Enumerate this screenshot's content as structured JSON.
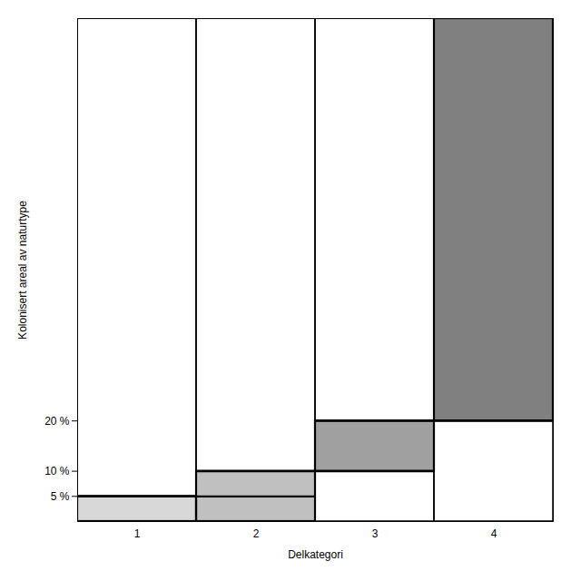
{
  "chart_data": {
    "type": "bar",
    "categories": [
      "1",
      "2",
      "3",
      "4"
    ],
    "y_bottom": [
      0,
      0,
      10,
      20
    ],
    "y_top": [
      5,
      10,
      20,
      100
    ],
    "colors": [
      "#d8d8d8",
      "#c0c0c0",
      "#a0a0a0",
      "#808080"
    ],
    "threshold_lines": [
      {
        "value": 5,
        "categories": [
          "1",
          "2"
        ]
      },
      {
        "value": 10,
        "categories": [
          "2",
          "3"
        ]
      },
      {
        "value": 20,
        "categories": [
          "3",
          "4"
        ]
      }
    ],
    "xlabel": "Delkategori",
    "ylabel": "Kolonisert areal av naturtype",
    "ylim": [
      0,
      100
    ],
    "yticks": [
      {
        "value": 5,
        "label": "5 %"
      },
      {
        "value": 10,
        "label": "10 %"
      },
      {
        "value": 20,
        "label": "20 %"
      }
    ],
    "grid": false
  }
}
